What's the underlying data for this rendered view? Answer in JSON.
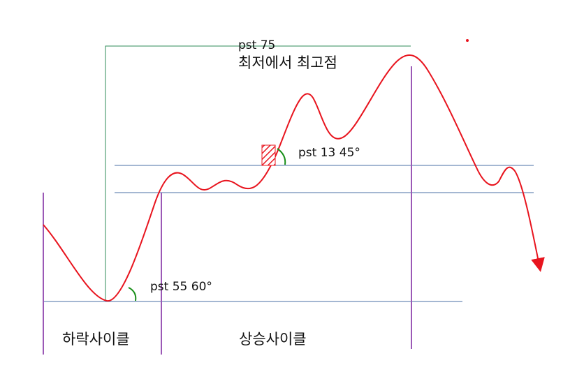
{
  "labels": {
    "pst75": "pst 75",
    "top_phrase": "최저에서 최고점",
    "pst13": "pst 13 45°",
    "pst55": "pst 55 60°",
    "down_cycle": "하락사이클",
    "up_cycle": "상승사이클"
  },
  "colors": {
    "price_line": "#e8141e",
    "guide_line": "#4a6fa5",
    "cycle_marker": "#9b59b6",
    "bracket_line": "#2e8b57",
    "angle_arc": "#1a8f1a",
    "hatch": "#e8141e"
  }
}
